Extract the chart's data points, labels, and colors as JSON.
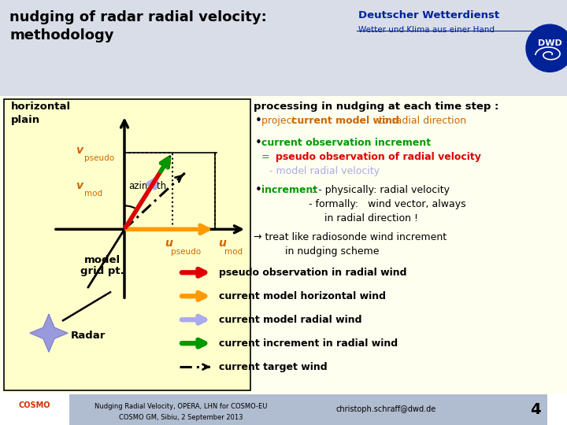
{
  "title_line1": "nudging of radar radial velocity:",
  "title_line2": "methodology",
  "header_bg": "#d8dde8",
  "content_bg": "#fffff0",
  "diagram_bg": "#ffffcc",
  "slide_bg": "#ffffff",
  "dwd_text1": "Deutscher Wetterdienst",
  "dwd_text2": "Wetter und Klima aus einer Hand",
  "footer_text1": "Nudging Radial Velocity, OPERA, LHN for COSMO-EU",
  "footer_text2": "COSMO GM, Sibiu, 2 September 2013",
  "footer_email": "christoph.schraff@dwd.de",
  "footer_page": "4",
  "footer_bg": "#b0bcd0",
  "red_color": "#dd0000",
  "orange_color": "#ff9900",
  "purple_color": "#aaaaee",
  "green_color": "#009900",
  "dark_orange": "#cc6600",
  "blue_label": "#3355bb",
  "legend_red": "pseudo observation in radial wind",
  "legend_orange": "current model horizontal wind",
  "legend_purple": "current model radial wind",
  "legend_green": "current increment in radial wind",
  "legend_dash": "current target wind"
}
